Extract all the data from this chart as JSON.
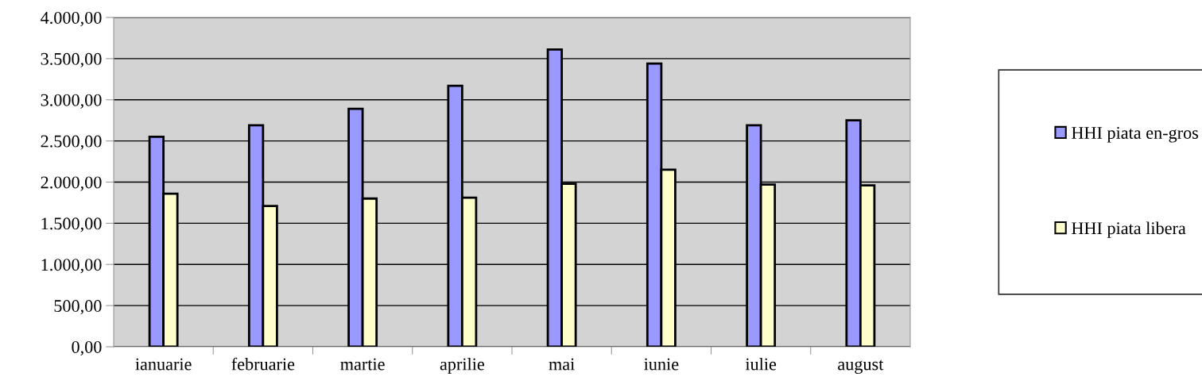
{
  "chart_data": {
    "type": "bar",
    "categories": [
      "ianuarie",
      "februarie",
      "martie",
      "aprilie",
      "mai",
      "iunie",
      "iulie",
      "august"
    ],
    "series": [
      {
        "name": "HHI piata en-gros",
        "color": "#9999ff",
        "values": [
          2550,
          2690,
          2890,
          3170,
          3610,
          3440,
          2690,
          2750
        ]
      },
      {
        "name": "HHI piata libera",
        "color": "#ffffcc",
        "values": [
          1860,
          1710,
          1800,
          1810,
          1980,
          2150,
          1970,
          1960
        ]
      }
    ],
    "ylim": [
      0,
      4000
    ],
    "yticks": [
      {
        "value": 0,
        "label": "0,00"
      },
      {
        "value": 500,
        "label": "500,00"
      },
      {
        "value": 1000,
        "label": "1.000,00"
      },
      {
        "value": 1500,
        "label": "1.500,00"
      },
      {
        "value": 2000,
        "label": "2.000,00"
      },
      {
        "value": 2500,
        "label": "2.500,00"
      },
      {
        "value": 3000,
        "label": "3.000,00"
      },
      {
        "value": 3500,
        "label": "3.500,00"
      },
      {
        "value": 4000,
        "label": "4.000,00"
      }
    ],
    "grid": "y",
    "legend": "right"
  }
}
